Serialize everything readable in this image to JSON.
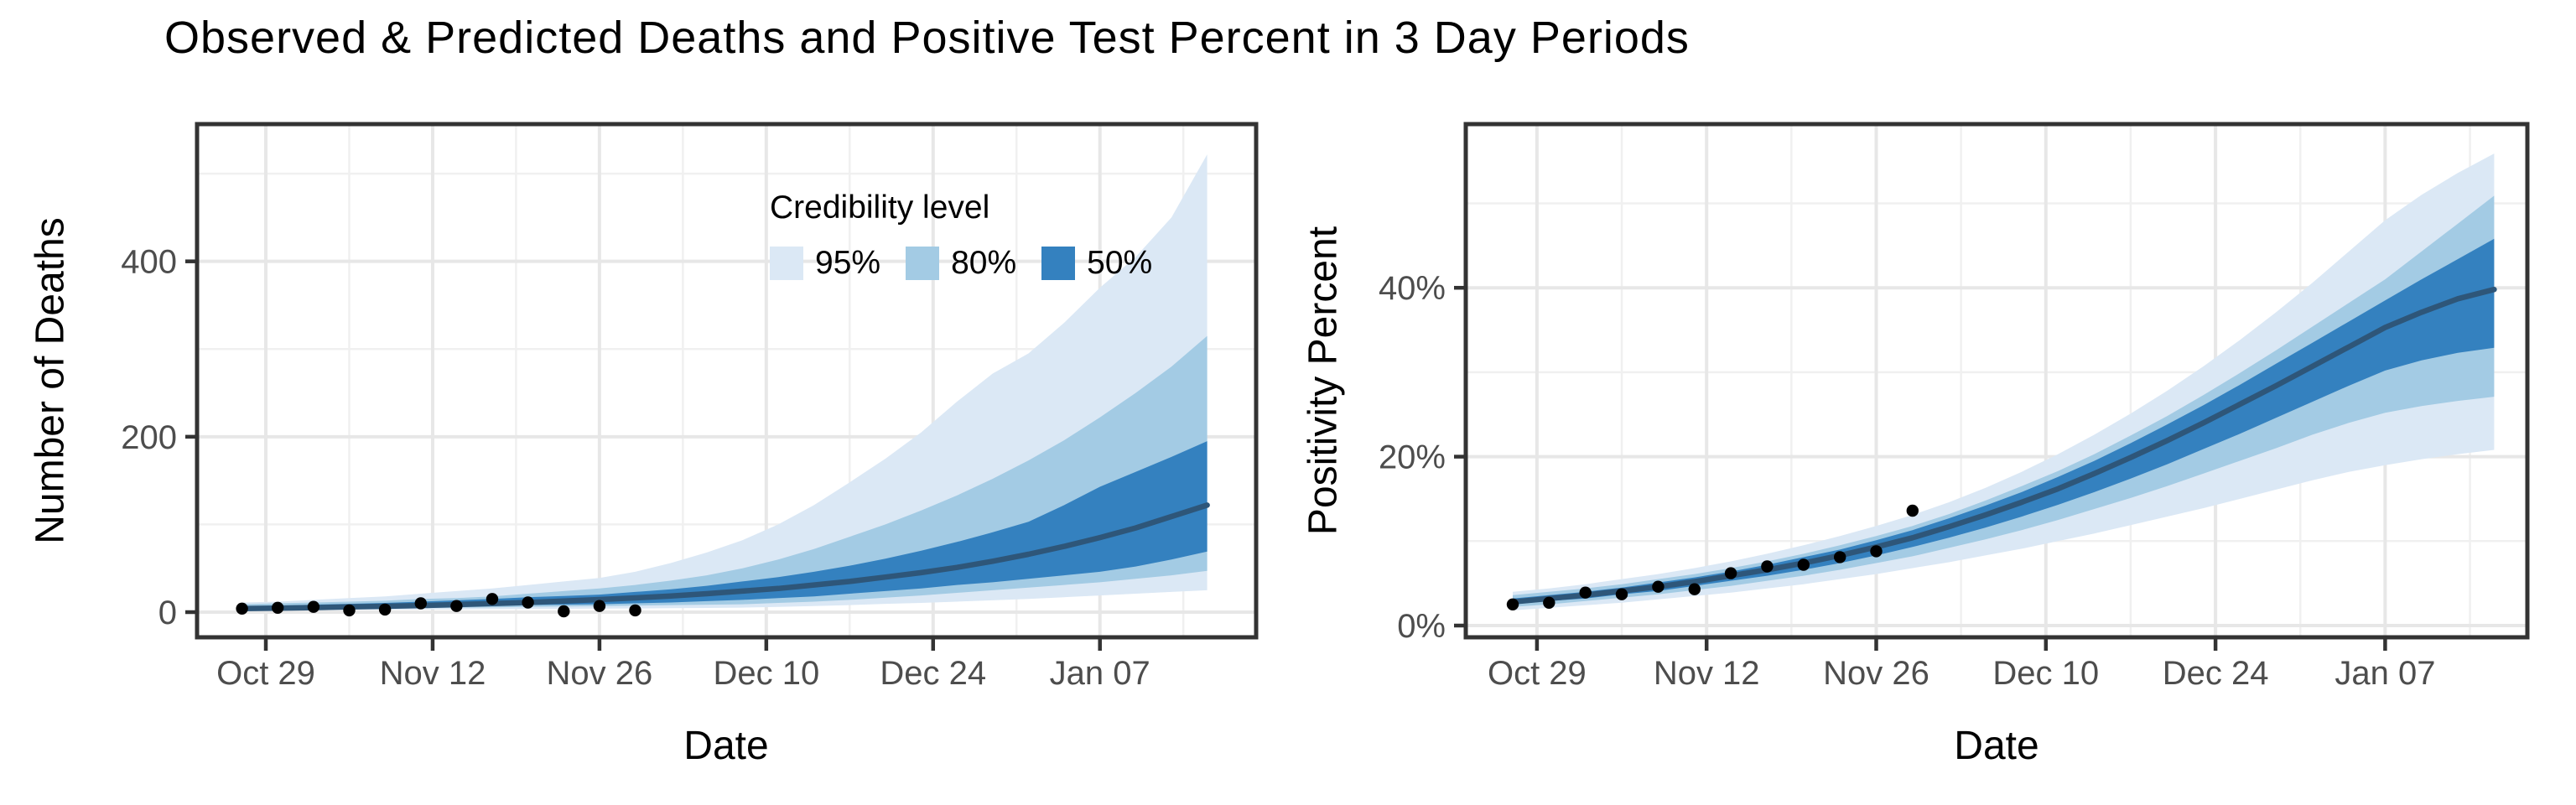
{
  "title": "Observed & Predicted Deaths and Positive Test Percent in 3 Day Periods",
  "legend": {
    "title": "Credibility level",
    "items": [
      {
        "label": "95%",
        "color": "#dbe8f5"
      },
      {
        "label": "80%",
        "color": "#a3cbe4"
      },
      {
        "label": "50%",
        "color": "#3481bf"
      }
    ]
  },
  "colors": {
    "ci95": "#dbe8f5",
    "ci80": "#a3cbe4",
    "ci50": "#3481bf",
    "median_line": "#2e5679",
    "observed_point": "#000000",
    "grid_major": "#e7e7e7",
    "grid_minor": "#f0f0f0",
    "panel_border": "#333333",
    "tick_mark": "#333333",
    "tick_text": "#4d4d4d"
  },
  "chart_data": [
    {
      "type": "area",
      "panel": "deaths",
      "ylabel": "Number of Deaths",
      "xlabel": "Date",
      "legend_position": "inside-top-right",
      "grid": true,
      "step_days": 3,
      "dates": [
        "Oct 27",
        "Oct 30",
        "Nov 2",
        "Nov 5",
        "Nov 8",
        "Nov 11",
        "Nov 14",
        "Nov 17",
        "Nov 20",
        "Nov 23",
        "Nov 26",
        "Nov 29",
        "Dec 2",
        "Dec 5",
        "Dec 8",
        "Dec 11",
        "Dec 14",
        "Dec 17",
        "Dec 20",
        "Dec 23",
        "Dec 26",
        "Dec 29",
        "Jan 1",
        "Jan 4",
        "Jan 7",
        "Jan 10",
        "Jan 13",
        "Jan 16"
      ],
      "series": {
        "median": [
          4,
          4.5,
          5.2,
          5.9,
          6.7,
          7.6,
          8.6,
          9.8,
          11,
          12.6,
          14.3,
          16.3,
          18.5,
          21,
          24,
          27,
          31,
          35,
          40,
          45,
          51,
          58,
          66,
          75,
          85,
          96,
          109,
          122
        ],
        "ci95_upper": [
          11,
          12,
          14,
          16,
          18,
          21,
          24,
          27,
          31,
          35,
          39,
          46,
          56,
          68,
          82,
          100,
          122,
          148,
          175,
          205,
          240,
          272,
          295,
          330,
          370,
          405,
          450,
          522
        ],
        "ci80_upper": [
          9,
          10,
          11,
          12,
          13,
          15,
          16,
          18,
          21,
          24,
          27,
          31,
          36,
          42,
          50,
          60,
          72,
          86,
          100,
          116,
          133,
          152,
          173,
          196,
          222,
          250,
          280,
          315
        ],
        "ci50_upper": [
          7,
          7.5,
          8.5,
          9.5,
          10.5,
          12,
          13.5,
          15,
          17,
          18.5,
          20,
          23,
          26,
          30,
          35,
          40,
          46,
          53,
          61,
          70,
          80,
          91,
          103,
          122,
          143,
          160,
          177,
          195
        ],
        "ci50_lower": [
          3.5,
          4,
          4.5,
          5,
          5.5,
          6,
          7,
          7.5,
          8,
          8.5,
          9,
          10,
          11,
          12.5,
          14,
          16,
          18,
          21,
          24,
          27,
          31,
          34,
          38,
          42,
          46,
          52,
          60,
          69
        ],
        "ci80_lower": [
          3,
          3.2,
          3.5,
          3.8,
          4.2,
          4.6,
          5,
          5.5,
          6,
          6.5,
          7,
          7.5,
          8,
          8.5,
          9,
          10.5,
          12,
          14,
          16.5,
          19,
          22,
          25,
          28,
          31,
          34,
          38,
          42,
          47
        ],
        "ci95_lower": [
          2,
          2.2,
          2.4,
          2.6,
          2.8,
          3,
          3.2,
          3.4,
          3.6,
          3.8,
          4,
          4.2,
          4.5,
          4.8,
          5.2,
          6,
          7,
          8,
          9.5,
          10.5,
          12,
          13.5,
          15,
          17,
          19,
          21,
          23,
          25
        ]
      },
      "observed": {
        "dates": [
          "Oct 27",
          "Oct 30",
          "Nov 2",
          "Nov 5",
          "Nov 8",
          "Nov 11",
          "Nov 14",
          "Nov 17",
          "Nov 20",
          "Nov 23",
          "Nov 26",
          "Nov 29"
        ],
        "values": [
          4,
          5,
          6,
          2,
          3,
          10,
          7,
          15,
          11,
          1,
          7,
          2
        ]
      },
      "x_ticks": [
        {
          "label": "Oct 29",
          "day": 2
        },
        {
          "label": "Nov 12",
          "day": 16
        },
        {
          "label": "Nov 26",
          "day": 30
        },
        {
          "label": "Dec 10",
          "day": 44
        },
        {
          "label": "Dec 24",
          "day": 58
        },
        {
          "label": "Jan 07",
          "day": 72
        }
      ],
      "x_minor_days": [
        9,
        23,
        37,
        51,
        65,
        79
      ],
      "y_ticks": [
        {
          "label": "0",
          "value": 0
        },
        {
          "label": "200",
          "value": 200
        },
        {
          "label": "400",
          "value": 400
        }
      ],
      "y_minor_values": [
        100,
        300,
        500
      ],
      "ylim": [
        -29,
        557
      ]
    },
    {
      "type": "area",
      "panel": "positivity",
      "ylabel": "Positivity Percent",
      "xlabel": "Date",
      "grid": true,
      "step_days": 3,
      "dates": [
        "Oct 27",
        "Oct 30",
        "Nov 2",
        "Nov 5",
        "Nov 8",
        "Nov 11",
        "Nov 14",
        "Nov 17",
        "Nov 20",
        "Nov 23",
        "Nov 26",
        "Nov 29",
        "Dec 2",
        "Dec 5",
        "Dec 8",
        "Dec 11",
        "Dec 14",
        "Dec 17",
        "Dec 20",
        "Dec 23",
        "Dec 26",
        "Dec 29",
        "Jan 1",
        "Jan 4",
        "Jan 7",
        "Jan 10",
        "Jan 13",
        "Jan 16"
      ],
      "series": {
        "median": [
          2.8,
          3.2,
          3.6,
          4.1,
          4.6,
          5.2,
          5.9,
          6.6,
          7.4,
          8.3,
          9.3,
          10.4,
          11.7,
          13.1,
          14.6,
          16.2,
          18.0,
          19.9,
          21.9,
          24.0,
          26.2,
          28.4,
          30.7,
          33.0,
          35.3,
          37.1,
          38.7,
          39.8
        ],
        "ci95_upper": [
          4.0,
          4.4,
          4.9,
          5.5,
          6.1,
          6.8,
          7.6,
          8.5,
          9.5,
          10.6,
          11.8,
          13.1,
          14.6,
          16.3,
          18.2,
          20.3,
          22.6,
          25.1,
          27.8,
          30.7,
          33.8,
          37.1,
          40.6,
          44.3,
          48.0,
          51.0,
          53.6,
          55.9
        ],
        "ci80_upper": [
          3.6,
          4.0,
          4.4,
          4.9,
          5.5,
          6.1,
          6.8,
          7.6,
          8.5,
          9.5,
          10.6,
          11.8,
          13.2,
          14.8,
          16.5,
          18.3,
          20.3,
          22.5,
          24.8,
          27.3,
          29.9,
          32.6,
          35.4,
          38.2,
          41.0,
          44.3,
          47.6,
          50.9
        ],
        "ci50_upper": [
          3.2,
          3.6,
          4.0,
          4.5,
          5.1,
          5.7,
          6.4,
          7.2,
          8.1,
          9.0,
          10.1,
          11.3,
          12.7,
          14.2,
          15.8,
          17.6,
          19.5,
          21.6,
          23.8,
          26.1,
          28.5,
          31.0,
          33.5,
          36.0,
          38.5,
          41.0,
          43.4,
          45.8
        ],
        "ci50_lower": [
          2.5,
          2.9,
          3.2,
          3.7,
          4.1,
          4.7,
          5.3,
          5.9,
          6.6,
          7.4,
          8.3,
          9.3,
          10.4,
          11.6,
          12.9,
          14.3,
          15.8,
          17.4,
          19.1,
          20.9,
          22.7,
          24.6,
          26.5,
          28.4,
          30.2,
          31.4,
          32.3,
          32.9
        ],
        "ci80_lower": [
          2.2,
          2.5,
          2.9,
          3.3,
          3.7,
          4.2,
          4.7,
          5.3,
          5.9,
          6.6,
          7.4,
          8.2,
          9.2,
          10.2,
          11.3,
          12.5,
          13.8,
          15.1,
          16.5,
          18.0,
          19.5,
          21.0,
          22.6,
          24.0,
          25.2,
          26.0,
          26.6,
          27.1
        ],
        "ci95_lower": [
          1.8,
          2.1,
          2.4,
          2.7,
          3.1,
          3.5,
          3.9,
          4.4,
          4.9,
          5.5,
          6.1,
          6.8,
          7.5,
          8.3,
          9.1,
          10.0,
          10.9,
          11.9,
          12.9,
          13.9,
          15.0,
          16.1,
          17.2,
          18.2,
          19.0,
          19.7,
          20.3,
          20.8
        ]
      },
      "observed": {
        "dates": [
          "Oct 27",
          "Oct 30",
          "Nov 2",
          "Nov 5",
          "Nov 8",
          "Nov 11",
          "Nov 14",
          "Nov 17",
          "Nov 20",
          "Nov 23",
          "Nov 26",
          "Nov 29"
        ],
        "values": [
          2.5,
          2.7,
          3.9,
          3.7,
          4.6,
          4.3,
          6.2,
          7.0,
          7.2,
          8.1,
          8.8,
          13.6
        ]
      },
      "x_ticks": [
        {
          "label": "Oct 29",
          "day": 2
        },
        {
          "label": "Nov 12",
          "day": 16
        },
        {
          "label": "Nov 26",
          "day": 30
        },
        {
          "label": "Dec 10",
          "day": 44
        },
        {
          "label": "Dec 24",
          "day": 58
        },
        {
          "label": "Jan 07",
          "day": 72
        }
      ],
      "x_minor_days": [
        9,
        23,
        37,
        51,
        65,
        79
      ],
      "y_ticks": [
        {
          "label": "0%",
          "value": 0
        },
        {
          "label": "20%",
          "value": 20
        },
        {
          "label": "40%",
          "value": 40
        }
      ],
      "y_minor_values": [
        10,
        30,
        50
      ],
      "ylim": [
        -1.4,
        59.4
      ]
    }
  ]
}
